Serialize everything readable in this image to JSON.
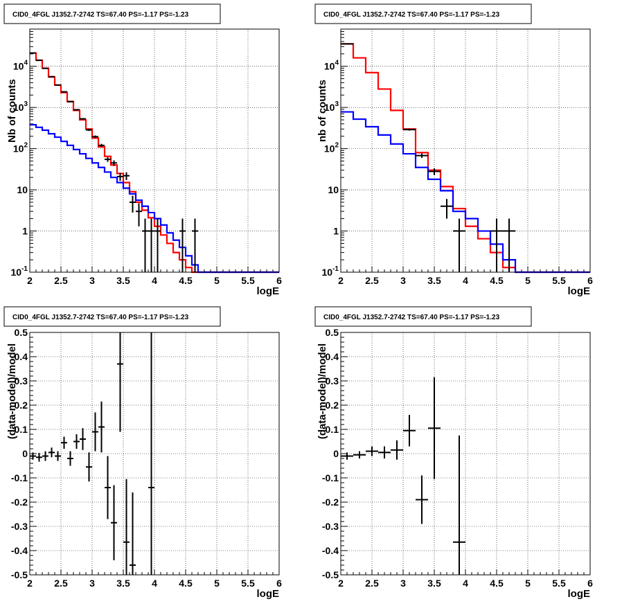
{
  "chart_data": [
    {
      "type": "histogram",
      "title": "CID0_4FGL J1352.7-2742 TS=67.40 PS=-1.17 PS=-1.23",
      "xlabel": "logE",
      "ylabel": "Nb of counts",
      "xlim": [
        2,
        6
      ],
      "ylim": [
        0.1,
        80000
      ],
      "yscale": "log",
      "grid": true,
      "xticks": [
        "2",
        "2.5",
        "3",
        "3.5",
        "4",
        "4.5",
        "5",
        "5.5",
        "6"
      ],
      "yticks": [
        "10^-1",
        "1",
        "10",
        "10^2",
        "10^3",
        "10^4"
      ],
      "bin_edges": [
        2.0,
        2.1,
        2.2,
        2.3,
        2.4,
        2.5,
        2.6,
        2.7,
        2.8,
        2.9,
        3.0,
        3.1,
        3.2,
        3.3,
        3.4,
        3.5,
        3.6,
        3.7,
        3.8,
        3.9,
        4.0,
        4.1,
        4.2,
        4.3,
        4.4,
        4.5,
        4.6,
        4.7,
        4.8,
        4.9,
        5.0,
        5.1,
        5.2,
        5.3,
        5.4,
        5.5,
        5.6,
        5.7,
        5.8,
        5.9,
        6.0
      ],
      "series": [
        {
          "color": "#ff0000",
          "values": [
            21000,
            14000,
            9000,
            5500,
            3500,
            2300,
            1400,
            850,
            500,
            300,
            180,
            110,
            65,
            40,
            25,
            15,
            9,
            5,
            3.2,
            2.1,
            1.3,
            0.8,
            0.5,
            0.3,
            0.2,
            0.13,
            0.1,
            0.1,
            0.1,
            0.1,
            0.1,
            0.1,
            0.1,
            0.1,
            0.1,
            0.1,
            0.1,
            0.1,
            0.1,
            0.1
          ]
        },
        {
          "color": "#0000ff",
          "values": [
            380,
            330,
            280,
            230,
            190,
            150,
            120,
            95,
            75,
            58,
            45,
            35,
            27,
            20,
            15,
            11,
            8,
            5.6,
            4,
            2.8,
            2,
            1.4,
            0.9,
            0.6,
            0.4,
            0.25,
            0.15,
            0.1,
            0.1,
            0.1,
            0.1,
            0.1,
            0.1,
            0.1,
            0.1,
            0.1,
            0.1,
            0.1,
            0.1,
            0.1
          ]
        }
      ],
      "data_points": [
        {
          "x": 2.05,
          "y": 21000,
          "lo": 20855,
          "hi": 21145
        },
        {
          "x": 2.15,
          "y": 14000,
          "lo": 13880,
          "hi": 14120
        },
        {
          "x": 2.25,
          "y": 8900,
          "lo": 8805,
          "hi": 8995
        },
        {
          "x": 2.35,
          "y": 5600,
          "lo": 5525,
          "hi": 5675
        },
        {
          "x": 2.45,
          "y": 3500,
          "lo": 3440,
          "hi": 3560
        },
        {
          "x": 2.55,
          "y": 2400,
          "lo": 2350,
          "hi": 2450
        },
        {
          "x": 2.65,
          "y": 1380,
          "lo": 1343,
          "hi": 1417
        },
        {
          "x": 2.75,
          "y": 880,
          "lo": 850,
          "hi": 910
        },
        {
          "x": 2.85,
          "y": 530,
          "lo": 507,
          "hi": 553
        },
        {
          "x": 2.95,
          "y": 285,
          "lo": 268,
          "hi": 302
        },
        {
          "x": 3.05,
          "y": 195,
          "lo": 181,
          "hi": 209
        },
        {
          "x": 3.15,
          "y": 120,
          "lo": 109,
          "hi": 131
        },
        {
          "x": 3.25,
          "y": 55,
          "lo": 48,
          "hi": 62
        },
        {
          "x": 3.35,
          "y": 45,
          "lo": 38,
          "hi": 52
        },
        {
          "x": 3.45,
          "y": 21,
          "lo": 16.5,
          "hi": 25.5
        },
        {
          "x": 3.55,
          "y": 22,
          "lo": 17.3,
          "hi": 26.7
        },
        {
          "x": 3.65,
          "y": 5,
          "lo": 2.8,
          "hi": 7.2
        },
        {
          "x": 3.75,
          "y": 3,
          "lo": 1.3,
          "hi": 4.7
        },
        {
          "x": 3.85,
          "y": 1,
          "lo": 0.1,
          "hi": 2
        },
        {
          "x": 3.95,
          "y": 1,
          "lo": 0.1,
          "hi": 2
        },
        {
          "x": 4.05,
          "y": 1,
          "lo": 0.1,
          "hi": 2
        },
        {
          "x": 4.45,
          "y": 1,
          "lo": 0.1,
          "hi": 2
        },
        {
          "x": 4.65,
          "y": 1,
          "lo": 0.1,
          "hi": 2
        }
      ],
      "data_color": "#000000"
    },
    {
      "type": "histogram",
      "title": "CID0_4FGL J1352.7-2742 TS=67.40 PS=-1.17 PS=-1.23",
      "xlabel": "logE",
      "ylabel": "nb of counts",
      "xlim": [
        2,
        6
      ],
      "ylim": [
        0.1,
        80000
      ],
      "yscale": "log",
      "grid": true,
      "xticks": [
        "2",
        "2.5",
        "3",
        "3.5",
        "4",
        "4.5",
        "5",
        "5.5",
        "6"
      ],
      "yticks": [
        "10^-1",
        "1",
        "10",
        "10^2",
        "10^3",
        "10^4"
      ],
      "bin_edges": [
        2.0,
        2.2,
        2.4,
        2.6,
        2.8,
        3.0,
        3.2,
        3.4,
        3.6,
        3.8,
        4.0,
        4.2,
        4.4,
        4.6,
        4.8,
        5.0,
        5.2,
        5.4,
        5.6,
        5.8,
        6.0
      ],
      "series": [
        {
          "color": "#ff0000",
          "values": [
            35000,
            16000,
            7000,
            2800,
            850,
            300,
            80,
            30,
            12,
            3.5,
            1.3,
            0.65,
            0.3,
            0.13,
            0.1,
            0.1,
            0.1,
            0.1,
            0.1,
            0.1
          ]
        },
        {
          "color": "#0000ff",
          "values": [
            780,
            520,
            340,
            215,
            130,
            75,
            35,
            18,
            9.5,
            3,
            2.0,
            1.0,
            0.48,
            0.2,
            0.1,
            0.1,
            0.1,
            0.1,
            0.1,
            0.1
          ]
        }
      ],
      "data_points": [
        {
          "x": 2.1,
          "y": 35000,
          "lo": 34813,
          "hi": 35187
        },
        {
          "x": 3.1,
          "y": 290,
          "lo": 273,
          "hi": 307
        },
        {
          "x": 3.3,
          "y": 68,
          "lo": 59.8,
          "hi": 76.2
        },
        {
          "x": 3.5,
          "y": 28,
          "lo": 22.7,
          "hi": 33.3
        },
        {
          "x": 3.7,
          "y": 4,
          "lo": 2,
          "hi": 6
        },
        {
          "x": 3.9,
          "y": 1,
          "lo": 0.1,
          "hi": 2
        },
        {
          "x": 4.5,
          "y": 1,
          "lo": 0.1,
          "hi": 2
        },
        {
          "x": 4.7,
          "y": 1,
          "lo": 0.1,
          "hi": 2
        }
      ],
      "data_color": "#000000"
    },
    {
      "type": "scatter",
      "title": "CID0_4FGL J1352.7-2742 TS=67.40 PS=-1.17 PS=-1.23",
      "xlabel": "logE",
      "ylabel": "(data-model)/model",
      "xlim": [
        2,
        6
      ],
      "ylim": [
        -0.5,
        0.5
      ],
      "grid": true,
      "xticks": [
        "2",
        "2.5",
        "3",
        "3.5",
        "4",
        "4.5",
        "5",
        "5.5",
        "6"
      ],
      "yticks": [
        "-0.5",
        "-0.4",
        "-0.3",
        "-0.2",
        "-0.1",
        "0",
        "0.1",
        "0.2",
        "0.3",
        "0.4",
        "0.5"
      ],
      "bin_width": 0.1,
      "points": [
        {
          "x": 2.05,
          "y": -0.01,
          "err": 0.015
        },
        {
          "x": 2.15,
          "y": -0.015,
          "err": 0.018
        },
        {
          "x": 2.25,
          "y": -0.01,
          "err": 0.02
        },
        {
          "x": 2.35,
          "y": 0.005,
          "err": 0.02
        },
        {
          "x": 2.45,
          "y": -0.01,
          "err": 0.02
        },
        {
          "x": 2.55,
          "y": 0.045,
          "err": 0.025
        },
        {
          "x": 2.65,
          "y": -0.02,
          "err": 0.03
        },
        {
          "x": 2.75,
          "y": 0.05,
          "err": 0.03
        },
        {
          "x": 2.85,
          "y": 0.06,
          "err": 0.045
        },
        {
          "x": 2.95,
          "y": -0.055,
          "err": 0.06
        },
        {
          "x": 3.05,
          "y": 0.09,
          "err": 0.08
        },
        {
          "x": 3.15,
          "y": 0.11,
          "err": 0.105
        },
        {
          "x": 3.25,
          "y": -0.14,
          "err": 0.13
        },
        {
          "x": 3.35,
          "y": -0.285,
          "err": 0.155
        },
        {
          "x": 3.45,
          "y": 0.37,
          "err": 0.28
        },
        {
          "x": 3.55,
          "y": -0.365,
          "err": 0.26
        },
        {
          "x": 3.65,
          "y": -0.46,
          "err": 0.3
        },
        {
          "x": 3.95,
          "y": -0.14,
          "err": 0.7
        }
      ],
      "color": "#000000"
    },
    {
      "type": "scatter",
      "title": "CID0_4FGL J1352.7-2742 TS=67.40 PS=-1.17 PS=-1.23",
      "xlabel": "logE",
      "ylabel": "(data-model)/model",
      "xlim": [
        2,
        6
      ],
      "ylim": [
        -0.5,
        0.5
      ],
      "grid": true,
      "xticks": [
        "2",
        "2.5",
        "3",
        "3.5",
        "4",
        "4.5",
        "5",
        "5.5",
        "6"
      ],
      "yticks": [
        "-0.5",
        "-0.4",
        "-0.3",
        "-0.2",
        "-0.1",
        "0",
        "0.1",
        "0.2",
        "0.3",
        "0.4",
        "0.5"
      ],
      "bin_width": 0.2,
      "points": [
        {
          "x": 2.1,
          "y": -0.01,
          "err": 0.015
        },
        {
          "x": 2.3,
          "y": -0.005,
          "err": 0.015
        },
        {
          "x": 2.5,
          "y": 0.01,
          "err": 0.02
        },
        {
          "x": 2.7,
          "y": 0.005,
          "err": 0.025
        },
        {
          "x": 2.9,
          "y": 0.015,
          "err": 0.04
        },
        {
          "x": 3.1,
          "y": 0.095,
          "err": 0.065
        },
        {
          "x": 3.3,
          "y": -0.19,
          "err": 0.1
        },
        {
          "x": 3.5,
          "y": 0.105,
          "err": 0.21
        },
        {
          "x": 3.9,
          "y": -0.365,
          "err": 0.44
        }
      ],
      "color": "#000000"
    }
  ]
}
